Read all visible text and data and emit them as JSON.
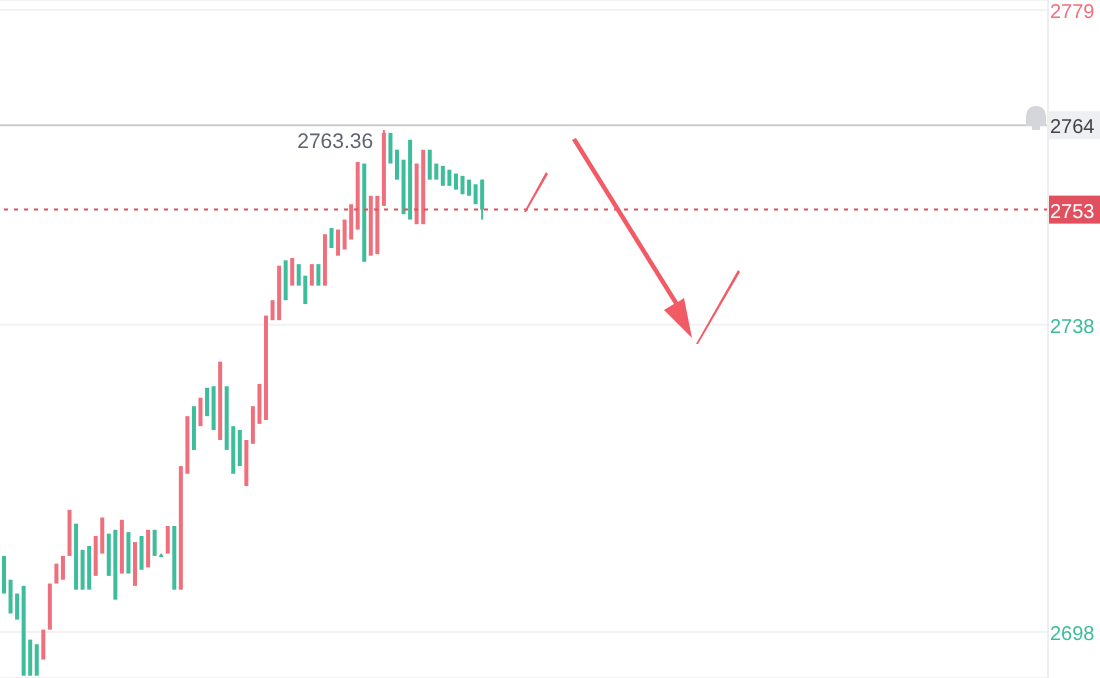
{
  "chart_data": {
    "type": "candlestick",
    "categories": [
      null,
      null,
      null,
      null,
      null,
      null,
      null,
      null,
      null,
      null,
      null,
      null,
      null,
      null,
      null,
      null,
      null,
      null,
      null,
      null,
      null,
      null,
      null,
      null,
      null,
      null,
      null,
      null,
      null,
      null,
      null,
      null,
      null,
      null,
      null,
      null,
      null,
      null,
      null,
      null,
      null,
      null,
      null,
      null,
      null,
      null,
      null,
      null,
      null,
      null,
      null,
      null,
      null,
      null,
      null,
      null,
      null,
      null,
      null,
      null,
      null,
      null,
      null,
      null,
      null,
      null,
      null,
      null,
      null,
      null,
      null,
      null,
      null,
      null,
      null,
      null,
      null,
      null,
      null,
      null,
      null,
      null,
      null,
      null,
      null,
      null,
      null,
      null,
      null,
      null,
      null,
      null,
      null,
      null,
      null,
      null,
      null,
      null,
      null,
      null,
      null,
      null,
      null,
      null,
      null,
      null,
      null,
      null,
      null,
      null,
      null,
      null,
      null,
      null,
      null,
      null,
      null,
      null,
      null,
      null,
      null,
      null,
      null,
      null,
      null,
      null,
      null,
      null,
      null,
      null,
      null,
      null,
      null,
      null,
      null,
      null,
      null,
      null,
      null,
      null,
      null,
      null,
      null,
      null,
      null,
      null,
      null,
      null,
      null,
      null,
      null,
      null,
      null,
      null,
      null,
      null,
      null,
      null,
      null,
      null
    ],
    "ohlc": [
      [
        2707.9,
        2707.9,
        2703.0,
        2703.0
      ],
      [
        2704.8,
        2704.8,
        2700.4,
        2700.4
      ],
      [
        2703.0,
        2703.0,
        2699.6,
        2699.6
      ],
      [
        2704.0,
        2704.0,
        2692.3,
        2692.3
      ],
      [
        2697.0,
        2697.0,
        2692.3,
        2692.3
      ],
      [
        2696.4,
        2696.4,
        2692.3,
        2692.3
      ],
      [
        2694.4,
        2698.3,
        2694.4,
        2698.3
      ],
      [
        2698.3,
        2704.3,
        2698.3,
        2704.3
      ],
      [
        2704.3,
        2706.9,
        2704.3,
        2706.9
      ],
      [
        2704.8,
        2707.9,
        2704.8,
        2707.9
      ],
      [
        2707.9,
        2713.9,
        2707.9,
        2713.9
      ],
      [
        2712.1,
        2712.1,
        2703.5,
        2703.5
      ],
      [
        2708.7,
        2708.7,
        2703.5,
        2703.5
      ],
      [
        2709.2,
        2709.2,
        2703.5,
        2703.5
      ],
      [
        2705.3,
        2710.5,
        2705.3,
        2710.5
      ],
      [
        2708.2,
        2712.9,
        2708.2,
        2712.9
      ],
      [
        2710.8,
        2710.8,
        2705.3,
        2705.3
      ],
      [
        2711.3,
        2711.3,
        2702.2,
        2702.2
      ],
      [
        2705.6,
        2712.6,
        2705.6,
        2712.6
      ],
      [
        2711.0,
        2711.0,
        2705.6,
        2705.6
      ],
      [
        2704.0,
        2709.7,
        2704.0,
        2709.7
      ],
      [
        2710.5,
        2710.5,
        2706.1,
        2706.1
      ],
      [
        2706.4,
        2711.3,
        2706.4,
        2711.3
      ],
      [
        2711.3,
        2711.3,
        2707.9,
        2707.9
      ],
      [
        2708.0,
        2708.2,
        2707.8,
        2708.0
      ],
      [
        2708.2,
        2711.8,
        2708.2,
        2711.8
      ],
      [
        2711.8,
        2711.8,
        2703.5,
        2703.5
      ],
      [
        2703.5,
        2719.6,
        2703.5,
        2719.6
      ],
      [
        2718.6,
        2726.1,
        2718.6,
        2726.1
      ],
      [
        2727.4,
        2727.4,
        2721.7,
        2721.7
      ],
      [
        2724.8,
        2728.5,
        2724.8,
        2728.5
      ],
      [
        2729.8,
        2729.8,
        2726.1,
        2726.1
      ],
      [
        2730.0,
        2730.0,
        2724.3,
        2724.3
      ],
      [
        2723.0,
        2733.2,
        2723.0,
        2733.2
      ],
      [
        2730.0,
        2730.0,
        2721.7,
        2721.7
      ],
      [
        2724.8,
        2724.8,
        2718.6,
        2718.6
      ],
      [
        2724.3,
        2724.3,
        2719.6,
        2719.6
      ],
      [
        2717.0,
        2723.0,
        2717.0,
        2723.0
      ],
      [
        2722.5,
        2727.4,
        2722.5,
        2727.4
      ],
      [
        2725.1,
        2730.3,
        2725.1,
        2730.3
      ],
      [
        2725.6,
        2739.2,
        2725.6,
        2739.2
      ],
      [
        2738.6,
        2741.2,
        2738.6,
        2741.2
      ],
      [
        2738.6,
        2745.7,
        2738.6,
        2745.7
      ],
      [
        2746.4,
        2746.4,
        2741.2,
        2741.2
      ],
      [
        2743.1,
        2746.7,
        2743.1,
        2746.7
      ],
      [
        2745.9,
        2745.9,
        2743.1,
        2743.1
      ],
      [
        2744.4,
        2744.4,
        2740.7,
        2740.7
      ],
      [
        2743.1,
        2745.9,
        2743.1,
        2745.9
      ],
      [
        2745.9,
        2745.9,
        2743.1,
        2743.1
      ],
      [
        2743.1,
        2749.8,
        2743.1,
        2749.8
      ],
      [
        2750.6,
        2750.6,
        2748.0,
        2748.0
      ],
      [
        2747.0,
        2750.4,
        2747.0,
        2750.4
      ],
      [
        2747.8,
        2751.7,
        2747.8,
        2751.7
      ],
      [
        2749.1,
        2753.7,
        2749.1,
        2753.7
      ],
      [
        2750.4,
        2759.2,
        2750.4,
        2759.2
      ],
      [
        2759.0,
        2759.0,
        2746.2,
        2746.2
      ],
      [
        2747.0,
        2754.8,
        2747.0,
        2754.8
      ],
      [
        2747.2,
        2754.8,
        2747.2,
        2754.8
      ],
      [
        2753.5,
        2763.36,
        2753.5,
        2763.0
      ],
      [
        2763.0,
        2763.0,
        2759.0,
        2759.0
      ],
      [
        2760.8,
        2760.8,
        2756.9,
        2756.9
      ],
      [
        2759.5,
        2759.5,
        2752.4,
        2752.4
      ],
      [
        2762.1,
        2762.1,
        2751.7,
        2751.7
      ],
      [
        2751.1,
        2759.0,
        2751.1,
        2759.0
      ],
      [
        2751.1,
        2760.8,
        2751.1,
        2760.8
      ],
      [
        2760.8,
        2760.8,
        2756.9,
        2756.9
      ],
      [
        2759.0,
        2759.0,
        2756.9,
        2756.9
      ],
      [
        2758.7,
        2758.7,
        2756.1,
        2756.1
      ],
      [
        2758.2,
        2758.2,
        2756.1,
        2756.1
      ],
      [
        2757.7,
        2757.7,
        2755.6,
        2755.6
      ],
      [
        2757.4,
        2757.4,
        2755.0,
        2755.0
      ],
      [
        2756.9,
        2756.9,
        2754.8,
        2754.8
      ],
      [
        2756.3,
        2756.3,
        2753.7,
        2753.7
      ],
      [
        2756.9,
        2756.9,
        2751.7,
        2753.0
      ],
      null,
      null,
      null,
      null,
      null,
      null,
      null,
      null,
      null,
      null,
      null,
      null,
      null,
      null,
      null,
      null,
      null,
      null,
      null,
      null,
      null,
      null,
      null,
      null,
      null,
      null,
      null,
      null,
      null,
      null,
      null,
      null,
      null,
      null,
      null,
      null,
      null,
      null,
      null,
      null,
      null,
      null,
      null,
      null,
      null,
      null,
      null,
      null,
      null,
      null,
      null,
      null,
      null,
      null,
      null,
      null,
      null,
      null,
      null,
      null,
      null,
      null,
      null,
      null,
      null,
      null,
      null,
      null,
      null,
      null,
      null,
      null,
      null,
      null,
      null,
      null,
      null,
      null,
      null,
      null,
      null,
      null,
      null,
      null,
      null,
      null
    ],
    "colors": [
      "#3dbd9c",
      "#3dbd9c",
      "#3dbd9c",
      "#3dbd9c",
      "#3dbd9c",
      "#3dbd9c",
      "#ef6f7c",
      "#ef6f7c",
      "#ef6f7c",
      "#ef6f7c",
      "#ef6f7c",
      "#3dbd9c",
      "#3dbd9c",
      "#3dbd9c",
      "#ef6f7c",
      "#ef6f7c",
      "#3dbd9c",
      "#3dbd9c",
      "#ef6f7c",
      "#3dbd9c",
      "#ef6f7c",
      "#3dbd9c",
      "#ef6f7c",
      "#3dbd9c",
      "#3dbd9c",
      "#ef6f7c",
      "#3dbd9c",
      "#ef6f7c",
      "#ef6f7c",
      "#3dbd9c",
      "#ef6f7c",
      "#3dbd9c",
      "#3dbd9c",
      "#ef6f7c",
      "#3dbd9c",
      "#3dbd9c",
      "#3dbd9c",
      "#ef6f7c",
      "#ef6f7c",
      "#ef6f7c",
      "#ef6f7c",
      "#ef6f7c",
      "#ef6f7c",
      "#3dbd9c",
      "#ef6f7c",
      "#3dbd9c",
      "#3dbd9c",
      "#ef6f7c",
      "#3dbd9c",
      "#ef6f7c",
      "#3dbd9c",
      "#ef6f7c",
      "#ef6f7c",
      "#ef6f7c",
      "#ef6f7c",
      "#3dbd9c",
      "#ef6f7c",
      "#ef6f7c",
      "#ef6f7c",
      "#3dbd9c",
      "#3dbd9c",
      "#3dbd9c",
      "#3dbd9c",
      "#ef6f7c",
      "#ef6f7c",
      "#3dbd9c",
      "#3dbd9c",
      "#3dbd9c",
      "#3dbd9c",
      "#3dbd9c",
      "#3dbd9c",
      "#3dbd9c",
      "#3dbd9c",
      "#3dbd9c",
      null,
      null,
      null,
      null,
      null,
      null,
      null,
      null,
      null,
      null,
      null,
      null,
      null,
      null,
      null,
      null,
      null,
      null,
      null,
      null,
      null,
      null,
      null,
      null,
      null,
      null,
      null,
      null,
      null,
      null,
      null,
      null,
      null,
      null,
      null,
      null,
      null,
      null,
      null,
      null,
      null,
      null,
      null,
      null,
      null,
      null,
      null,
      null,
      null,
      null,
      null,
      null,
      null,
      null,
      null,
      null,
      null,
      null,
      null,
      null,
      null,
      null,
      null,
      null,
      null,
      null,
      null,
      null,
      null,
      null,
      null,
      null,
      null,
      null,
      null,
      null,
      null,
      null,
      null,
      null,
      null,
      null,
      null,
      null,
      null,
      null
    ],
    "ylim": [
      2692,
      2780.3
    ],
    "yticks": [
      2698,
      2738,
      2779
    ],
    "grid": "y",
    "ref_lines": [
      {
        "axis": "y",
        "value": 2764,
        "label": "2764",
        "color": "#cccccc",
        "line_style": "solid"
      },
      {
        "axis": "y",
        "value": 2753,
        "label": "2753",
        "color": "#e0505e",
        "line_style": "dotted"
      }
    ],
    "annotations": [
      {
        "text": "2763.36",
        "y": 2763.36
      }
    ]
  }
}
